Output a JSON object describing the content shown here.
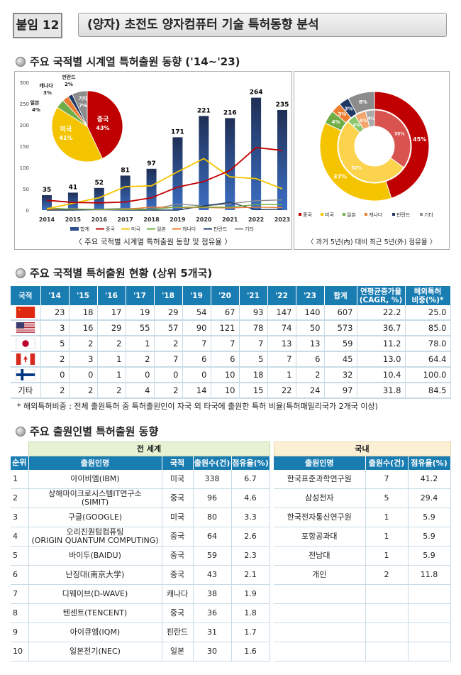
{
  "header": {
    "tag": "붙임 12",
    "title": "(양자) 초전도 양자컴퓨터 기술 특허동향 분석"
  },
  "section1": {
    "heading": "주요 국적별 시계열 특허출원 동향 ('14~'23)"
  },
  "colors": {
    "total": "#2f4f8f",
    "china": "#c00000",
    "usa": "#f5c400",
    "japan": "#70ad47",
    "canada": "#ed7d31",
    "finland": "#1f3864",
    "other": "#8c8c8c",
    "table_header": "#1a7db2"
  },
  "chart_data": [
    {
      "type": "bar+line",
      "caption": "〈 주요 국적별 시계열 특허출원 동향 및 점유율 〉",
      "categories": [
        "2014",
        "2015",
        "2016",
        "2017",
        "2018",
        "2019",
        "2020",
        "2021",
        "2022",
        "2023"
      ],
      "ylim": [
        0,
        300
      ],
      "yticks": [
        "0",
        "50",
        "100",
        "150",
        "200",
        "250",
        "300"
      ],
      "legend": [
        "합계",
        "중국",
        "미국",
        "일본",
        "캐나다",
        "핀란드",
        "기타"
      ],
      "bar": {
        "name": "합계",
        "values": [
          35,
          41,
          52,
          81,
          97,
          171,
          221,
          216,
          264,
          235
        ]
      },
      "lines": [
        {
          "name": "중국",
          "values": [
            23,
            18,
            17,
            19,
            29,
            54,
            67,
            93,
            147,
            140
          ]
        },
        {
          "name": "미국",
          "values": [
            3,
            16,
            29,
            55,
            57,
            90,
            121,
            78,
            74,
            50
          ]
        },
        {
          "name": "일본",
          "values": [
            5,
            2,
            2,
            1,
            2,
            7,
            7,
            7,
            13,
            13
          ]
        },
        {
          "name": "캐나다",
          "values": [
            2,
            3,
            1,
            2,
            7,
            6,
            6,
            5,
            7,
            6
          ]
        },
        {
          "name": "핀란드",
          "values": [
            0,
            0,
            1,
            0,
            0,
            0,
            10,
            18,
            1,
            2
          ]
        },
        {
          "name": "기타",
          "values": [
            2,
            2,
            2,
            4,
            2,
            14,
            10,
            15,
            22,
            24
          ]
        }
      ],
      "pie": {
        "type": "pie",
        "labels": [
          "중국",
          "미국",
          "일본",
          "캐나다",
          "핀란드",
          "기타"
        ],
        "values": [
          43,
          41,
          4,
          3,
          2,
          7
        ]
      }
    },
    {
      "type": "donut",
      "caption": "〈 과거 5년(內) 대비 최근 5년(外) 점유율 〉",
      "labels": [
        "중국",
        "미국",
        "일본",
        "캐나다",
        "핀란드",
        "기타"
      ],
      "inner": {
        "name": "과거 5년",
        "values": [
          35,
          52,
          4,
          5,
          0,
          4
        ]
      },
      "outer": {
        "name": "최근 5년",
        "values": [
          45,
          37,
          4,
          3,
          3,
          8
        ]
      }
    }
  ],
  "section2": {
    "heading": "주요 국적별 특허출원 현황 (상위 5개국)",
    "headers": [
      "국적",
      "'14",
      "'15",
      "'16",
      "'17",
      "'18",
      "'19",
      "'20",
      "'21",
      "'22",
      "'23",
      "합계",
      "연평균증가율\n(CAGR, %)",
      "해외특허\n비중(%)*"
    ],
    "rows": [
      {
        "flag": "china",
        "cells": [
          "23",
          "18",
          "17",
          "19",
          "29",
          "54",
          "67",
          "93",
          "147",
          "140",
          "607",
          "22.2",
          "25.0"
        ]
      },
      {
        "flag": "usa",
        "cells": [
          "3",
          "16",
          "29",
          "55",
          "57",
          "90",
          "121",
          "78",
          "74",
          "50",
          "573",
          "36.7",
          "85.0"
        ]
      },
      {
        "flag": "japan",
        "cells": [
          "5",
          "2",
          "2",
          "1",
          "2",
          "7",
          "7",
          "7",
          "13",
          "13",
          "59",
          "11.2",
          "78.0"
        ]
      },
      {
        "flag": "canada",
        "cells": [
          "2",
          "3",
          "1",
          "2",
          "7",
          "6",
          "6",
          "5",
          "7",
          "6",
          "45",
          "13.0",
          "64.4"
        ]
      },
      {
        "flag": "finland",
        "cells": [
          "0",
          "0",
          "1",
          "0",
          "0",
          "0",
          "10",
          "18",
          "1",
          "2",
          "32",
          "10.4",
          "100.0"
        ]
      },
      {
        "label": "기타",
        "cells": [
          "2",
          "2",
          "2",
          "4",
          "2",
          "14",
          "10",
          "15",
          "22",
          "24",
          "97",
          "31.8",
          "84.5"
        ]
      }
    ],
    "note": "* 해외특허비중 : 전체 출원특허 중 특허출원인이 자국 외 타국에 출원한 특허 비율(특허패밀리국가 2개국 이상)"
  },
  "section3": {
    "heading": "주요 출원인별 특허출원 동향",
    "world_label": "전 세계",
    "domestic_label": "국내",
    "world_headers": [
      "순위",
      "출원인명",
      "국적",
      "출원수(건)",
      "점유율(%)"
    ],
    "domestic_headers": [
      "출원인명",
      "출원수(건)",
      "점유율(%)"
    ],
    "world": [
      [
        "1",
        "아이비엠(IBM)",
        "미국",
        "338",
        "6.7"
      ],
      [
        "2",
        "상해마이크로시스템IT연구소\n(SIMIT)",
        "중국",
        "96",
        "4.6"
      ],
      [
        "3",
        "구글(GOOGLE)",
        "미국",
        "80",
        "3.3"
      ],
      [
        "4",
        "오리진퀀텀컴퓨팅\n(ORIGIN QUANTUM COMPUTING)",
        "중국",
        "64",
        "2.6"
      ],
      [
        "5",
        "바이두(BAIDU)",
        "중국",
        "59",
        "2.3"
      ],
      [
        "6",
        "난징대(南京大学)",
        "중국",
        "43",
        "2.1"
      ],
      [
        "7",
        "디웨이브(D-WAVE)",
        "캐나다",
        "38",
        "1.9"
      ],
      [
        "8",
        "텐센트(TENCENT)",
        "중국",
        "36",
        "1.8"
      ],
      [
        "9",
        "아이큐엠(IQM)",
        "핀란드",
        "31",
        "1.7"
      ],
      [
        "10",
        "일본전기(NEC)",
        "일본",
        "30",
        "1.6"
      ]
    ],
    "domestic": [
      [
        "한국표준과학연구원",
        "7",
        "41.2"
      ],
      [
        "삼성전자",
        "5",
        "29.4"
      ],
      [
        "한국전자통신연구원",
        "1",
        "5.9"
      ],
      [
        "포항공과대",
        "1",
        "5.9"
      ],
      [
        "전남대",
        "1",
        "5.9"
      ],
      [
        "개인",
        "2",
        "11.8"
      ],
      [
        "",
        "",
        ""
      ],
      [
        "",
        "",
        ""
      ],
      [
        "",
        "",
        ""
      ],
      [
        "",
        "",
        ""
      ]
    ]
  }
}
